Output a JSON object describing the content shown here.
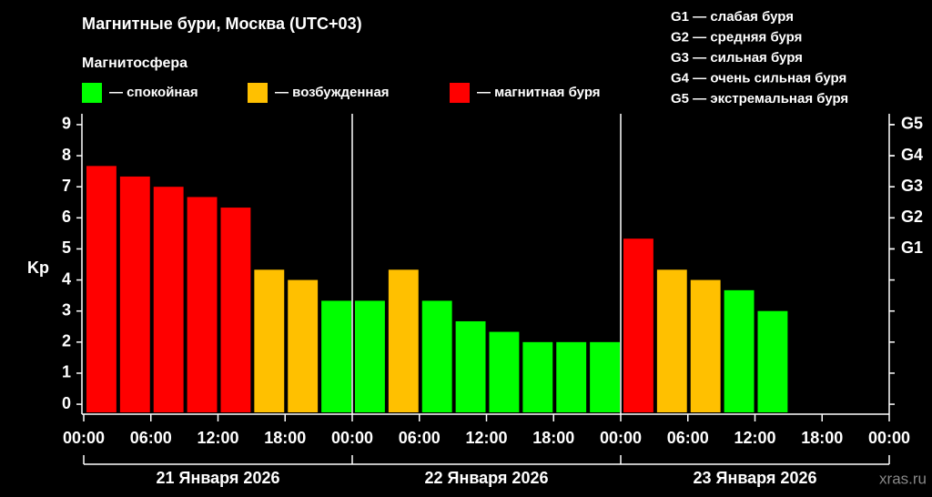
{
  "chart_data": {
    "type": "bar",
    "title": "Магнитные бури, Москва (UTC+03)",
    "legend_title": "Магнитосфера",
    "legend": [
      {
        "name": "— спокойная",
        "color": "#00ff00"
      },
      {
        "name": "— возбужденная",
        "color": "#ffc000"
      },
      {
        "name": "— магнитная буря",
        "color": "#ff0000"
      }
    ],
    "storm_scale": [
      "G1 — слабая буря",
      "G2 — средняя буря",
      "G3 — сильная буря",
      "G4 — очень сильная буря",
      "G5 — экстремальная буря"
    ],
    "ylabel": "Kp",
    "x": [
      0,
      3,
      6,
      9,
      12,
      15,
      18,
      21,
      24,
      27,
      30,
      33,
      36,
      39,
      42,
      45,
      48,
      51,
      54,
      57,
      60,
      63,
      66,
      69
    ],
    "values": [
      7.67,
      7.33,
      7,
      6.67,
      6.33,
      4.33,
      4,
      3.33,
      3.33,
      4.33,
      3.33,
      2.67,
      2.33,
      2,
      2,
      2,
      5.33,
      4.33,
      4,
      3.67,
      3,
      null,
      null,
      null
    ],
    "colors": [
      "#ff0000",
      "#ff0000",
      "#ff0000",
      "#ff0000",
      "#ff0000",
      "#ffc000",
      "#ffc000",
      "#00ff00",
      "#00ff00",
      "#ffc000",
      "#00ff00",
      "#00ff00",
      "#00ff00",
      "#00ff00",
      "#00ff00",
      "#00ff00",
      "#ff0000",
      "#ffc000",
      "#ffc000",
      "#00ff00",
      "#00ff00",
      null,
      null,
      null
    ],
    "xlim": [
      0,
      72
    ],
    "xticks": [
      {
        "value": 0,
        "label": "00:00"
      },
      {
        "value": 6,
        "label": "06:00"
      },
      {
        "value": 12,
        "label": "12:00"
      },
      {
        "value": 18,
        "label": "18:00"
      },
      {
        "value": 24,
        "label": "00:00"
      },
      {
        "value": 30,
        "label": "06:00"
      },
      {
        "value": 36,
        "label": "12:00"
      },
      {
        "value": 42,
        "label": "18:00"
      },
      {
        "value": 48,
        "label": "00:00"
      },
      {
        "value": 54,
        "label": "06:00"
      },
      {
        "value": 60,
        "label": "12:00"
      },
      {
        "value": 66,
        "label": "18:00"
      },
      {
        "value": 72,
        "label": "00:00"
      }
    ],
    "days": [
      "21 Января 2026",
      "22 Января 2026",
      "23 Января 2026"
    ],
    "ylim": [
      -0.32,
      9.35
    ],
    "yticks": [
      0,
      1,
      2,
      3,
      4,
      5,
      6,
      7,
      8,
      9
    ],
    "y2lim": [
      -0.32,
      9.35
    ],
    "y2ticks": [
      {
        "value": 5,
        "label": "G1"
      },
      {
        "value": 6,
        "label": "G2"
      },
      {
        "value": 7,
        "label": "G3"
      },
      {
        "value": 8,
        "label": "G4"
      },
      {
        "value": 9,
        "label": "G5"
      }
    ],
    "watermark": "xras.ru"
  }
}
